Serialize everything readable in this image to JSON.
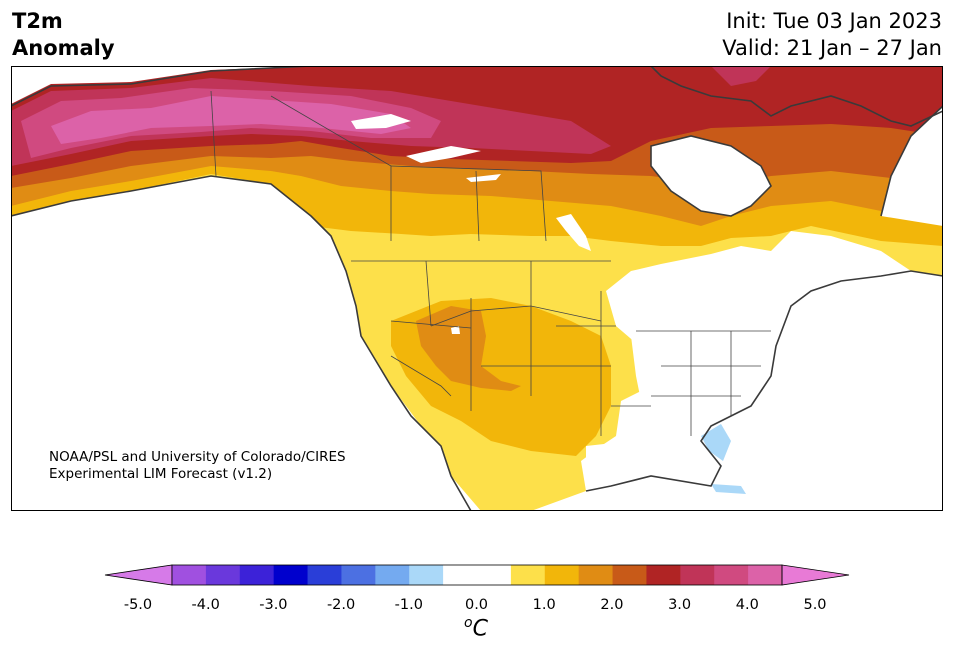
{
  "header": {
    "variable_line1": "T2m",
    "variable_line2": "Anomaly",
    "init": "Init: Tue 03 Jan 2023",
    "valid": "Valid: 21 Jan – 27 Jan"
  },
  "credit": {
    "line1": "NOAA/PSL and University of Colorado/CIRES",
    "line2": "Experimental LIM Forecast (v1.2)"
  },
  "colorbar": {
    "unit_base": "C",
    "unit_sup": "o",
    "tick_labels": [
      "-5.0",
      "-4.0",
      "-3.0",
      "-2.0",
      "-1.0",
      "0.0",
      "1.0",
      "2.0",
      "3.0",
      "4.0",
      "5.0"
    ],
    "extend_low_color": "#d67ae8",
    "extend_high_color": "#e87ad6",
    "colors": [
      "#d67ae8",
      "#a050e0",
      "#6a38dc",
      "#3c22d8",
      "#0000cd",
      "#2a3ed8",
      "#4c70e2",
      "#74aaf0",
      "#aad8f8",
      "#ffffff",
      "#ffffff",
      "#fde04a",
      "#f2b60a",
      "#e08c14",
      "#c85a18",
      "#b02424",
      "#c03458",
      "#d04a80",
      "#dc62a8",
      "#e87ad6"
    ]
  },
  "map": {
    "region": "North America",
    "anomaly_colors": {
      "0.5": "#fde04a",
      "1.0": "#f2b60a",
      "1.5": "#e08c14",
      "2.0": "#c85a18",
      "2.5": "#b02424",
      "3.0": "#c03458",
      "3.5": "#d04a80",
      "4.0": "#dc62a8",
      "negative_light": "#aad8f8"
    }
  }
}
